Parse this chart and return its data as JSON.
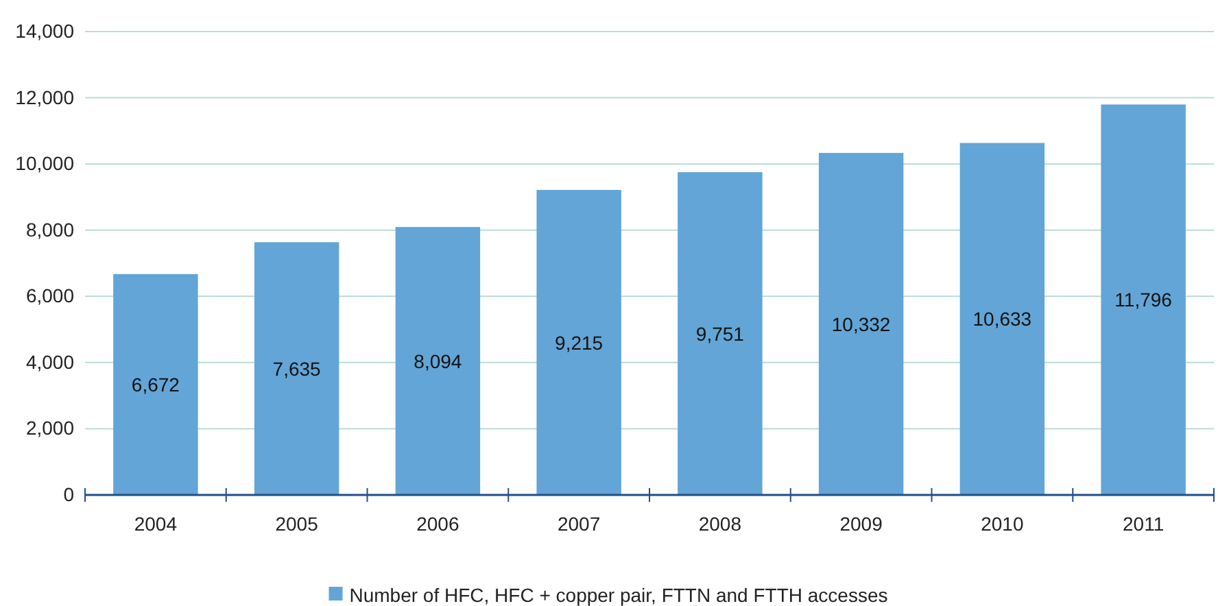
{
  "chart_data": {
    "type": "bar",
    "categories": [
      "2004",
      "2005",
      "2006",
      "2007",
      "2008",
      "2009",
      "2010",
      "2011"
    ],
    "series": [
      {
        "name": "Number of HFC, HFC + copper pair, FTTN and FTTH accesses",
        "color": "#62a5d6",
        "values": [
          6672,
          7635,
          8094,
          9215,
          9751,
          10332,
          10633,
          11796
        ],
        "value_labels": [
          "6,672",
          "7,635",
          "8,094",
          "9,215",
          "9,751",
          "10,332",
          "10,633",
          "11,796"
        ]
      }
    ],
    "ylim": [
      0,
      14000
    ],
    "yticks": [
      {
        "value": 0,
        "label": "0"
      },
      {
        "value": 2000,
        "label": "2,000"
      },
      {
        "value": 4000,
        "label": "4,000"
      },
      {
        "value": 6000,
        "label": "6,000"
      },
      {
        "value": 8000,
        "label": "8,000"
      },
      {
        "value": 10000,
        "label": "10,000"
      },
      {
        "value": 12000,
        "label": "12,000"
      },
      {
        "value": 14000,
        "label": "14,000"
      }
    ],
    "grid": "y",
    "legend": "bottom"
  }
}
